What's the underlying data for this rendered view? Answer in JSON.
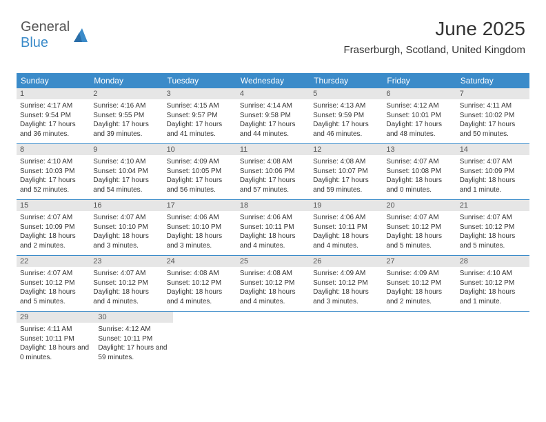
{
  "logo": {
    "text1": "General",
    "text2": "Blue"
  },
  "title": "June 2025",
  "subtitle": "Fraserburgh, Scotland, United Kingdom",
  "colors": {
    "header_bg": "#3b8bc9",
    "daynum_bg": "#e6e6e6",
    "border": "#3b8bc9",
    "text": "#333",
    "logo_gray": "#555",
    "logo_blue": "#3b8bc9"
  },
  "fontsizes": {
    "title": 28,
    "subtitle": 15,
    "header": 12,
    "daynum": 11,
    "body": 10
  },
  "headers": [
    "Sunday",
    "Monday",
    "Tuesday",
    "Wednesday",
    "Thursday",
    "Friday",
    "Saturday"
  ],
  "weeks": [
    [
      {
        "n": "1",
        "sr": "4:17 AM",
        "ss": "9:54 PM",
        "dl": "17 hours and 36 minutes."
      },
      {
        "n": "2",
        "sr": "4:16 AM",
        "ss": "9:55 PM",
        "dl": "17 hours and 39 minutes."
      },
      {
        "n": "3",
        "sr": "4:15 AM",
        "ss": "9:57 PM",
        "dl": "17 hours and 41 minutes."
      },
      {
        "n": "4",
        "sr": "4:14 AM",
        "ss": "9:58 PM",
        "dl": "17 hours and 44 minutes."
      },
      {
        "n": "5",
        "sr": "4:13 AM",
        "ss": "9:59 PM",
        "dl": "17 hours and 46 minutes."
      },
      {
        "n": "6",
        "sr": "4:12 AM",
        "ss": "10:01 PM",
        "dl": "17 hours and 48 minutes."
      },
      {
        "n": "7",
        "sr": "4:11 AM",
        "ss": "10:02 PM",
        "dl": "17 hours and 50 minutes."
      }
    ],
    [
      {
        "n": "8",
        "sr": "4:10 AM",
        "ss": "10:03 PM",
        "dl": "17 hours and 52 minutes."
      },
      {
        "n": "9",
        "sr": "4:10 AM",
        "ss": "10:04 PM",
        "dl": "17 hours and 54 minutes."
      },
      {
        "n": "10",
        "sr": "4:09 AM",
        "ss": "10:05 PM",
        "dl": "17 hours and 56 minutes."
      },
      {
        "n": "11",
        "sr": "4:08 AM",
        "ss": "10:06 PM",
        "dl": "17 hours and 57 minutes."
      },
      {
        "n": "12",
        "sr": "4:08 AM",
        "ss": "10:07 PM",
        "dl": "17 hours and 59 minutes."
      },
      {
        "n": "13",
        "sr": "4:07 AM",
        "ss": "10:08 PM",
        "dl": "18 hours and 0 minutes."
      },
      {
        "n": "14",
        "sr": "4:07 AM",
        "ss": "10:09 PM",
        "dl": "18 hours and 1 minute."
      }
    ],
    [
      {
        "n": "15",
        "sr": "4:07 AM",
        "ss": "10:09 PM",
        "dl": "18 hours and 2 minutes."
      },
      {
        "n": "16",
        "sr": "4:07 AM",
        "ss": "10:10 PM",
        "dl": "18 hours and 3 minutes."
      },
      {
        "n": "17",
        "sr": "4:06 AM",
        "ss": "10:10 PM",
        "dl": "18 hours and 3 minutes."
      },
      {
        "n": "18",
        "sr": "4:06 AM",
        "ss": "10:11 PM",
        "dl": "18 hours and 4 minutes."
      },
      {
        "n": "19",
        "sr": "4:06 AM",
        "ss": "10:11 PM",
        "dl": "18 hours and 4 minutes."
      },
      {
        "n": "20",
        "sr": "4:07 AM",
        "ss": "10:12 PM",
        "dl": "18 hours and 5 minutes."
      },
      {
        "n": "21",
        "sr": "4:07 AM",
        "ss": "10:12 PM",
        "dl": "18 hours and 5 minutes."
      }
    ],
    [
      {
        "n": "22",
        "sr": "4:07 AM",
        "ss": "10:12 PM",
        "dl": "18 hours and 5 minutes."
      },
      {
        "n": "23",
        "sr": "4:07 AM",
        "ss": "10:12 PM",
        "dl": "18 hours and 4 minutes."
      },
      {
        "n": "24",
        "sr": "4:08 AM",
        "ss": "10:12 PM",
        "dl": "18 hours and 4 minutes."
      },
      {
        "n": "25",
        "sr": "4:08 AM",
        "ss": "10:12 PM",
        "dl": "18 hours and 4 minutes."
      },
      {
        "n": "26",
        "sr": "4:09 AM",
        "ss": "10:12 PM",
        "dl": "18 hours and 3 minutes."
      },
      {
        "n": "27",
        "sr": "4:09 AM",
        "ss": "10:12 PM",
        "dl": "18 hours and 2 minutes."
      },
      {
        "n": "28",
        "sr": "4:10 AM",
        "ss": "10:12 PM",
        "dl": "18 hours and 1 minute."
      }
    ],
    [
      {
        "n": "29",
        "sr": "4:11 AM",
        "ss": "10:11 PM",
        "dl": "18 hours and 0 minutes."
      },
      {
        "n": "30",
        "sr": "4:12 AM",
        "ss": "10:11 PM",
        "dl": "17 hours and 59 minutes."
      },
      null,
      null,
      null,
      null,
      null
    ]
  ],
  "labels": {
    "sunrise": "Sunrise: ",
    "sunset": "Sunset: ",
    "daylight": "Daylight: "
  }
}
